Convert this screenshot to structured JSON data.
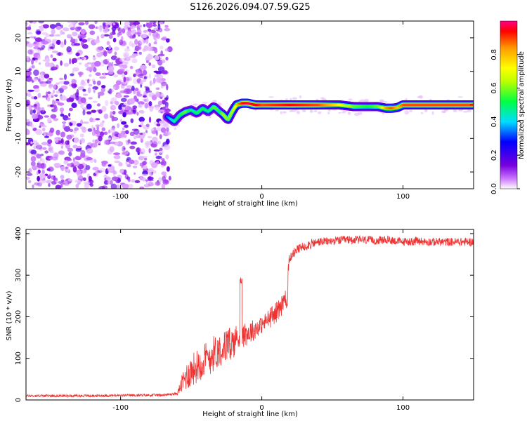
{
  "title": "S126.2026.094.07.59.G25",
  "chart_data": [
    {
      "type": "heatmap",
      "title": "S126.2026.094.07.59.G25",
      "xlabel": "Height of straight line (km)",
      "ylabel": "Frequency (Hz)",
      "xlim": [
        -167,
        150
      ],
      "ylim": [
        -25,
        25
      ],
      "x_ticks": [
        -100,
        0,
        100
      ],
      "x_tick_labels": [
        "-100",
        "0",
        "100"
      ],
      "y_ticks": [
        -20,
        -10,
        0,
        10,
        20
      ],
      "y_tick_labels": [
        "-20",
        "-10",
        "0",
        "10",
        "20"
      ],
      "noise_region_x": [
        -167,
        -65
      ],
      "ridge": {
        "x": [
          -67,
          -62,
          -58,
          -54,
          -50,
          -46,
          -42,
          -38,
          -34,
          -30,
          -27,
          -24,
          -21,
          -18,
          -14,
          -10,
          -5,
          0,
          20,
          40,
          55,
          65,
          75,
          82,
          88,
          92,
          96,
          100,
          110,
          130,
          150
        ],
        "y": [
          -3.5,
          -5,
          -3,
          -2,
          -1.5,
          -2.5,
          -1,
          -2,
          -0.5,
          -2,
          -3,
          -4.5,
          -2,
          0,
          0.5,
          0.5,
          0,
          0,
          0,
          0,
          0,
          -0.5,
          -0.5,
          -0.5,
          -1,
          -1,
          -0.8,
          0,
          0,
          0,
          0
        ],
        "amplitude": [
          0.35,
          0.45,
          0.5,
          0.55,
          0.45,
          0.5,
          0.5,
          0.45,
          0.55,
          0.5,
          0.6,
          0.55,
          0.6,
          0.75,
          0.9,
          0.95,
          0.92,
          0.85,
          0.9,
          0.85,
          0.7,
          0.55,
          0.5,
          0.55,
          0.8,
          0.85,
          0.75,
          0.85,
          0.85,
          0.85,
          0.85
        ]
      },
      "colorbar": {
        "label": "Normalized spectral amplitude",
        "range": [
          0,
          1
        ],
        "ticks": [
          "0.0",
          "0.2",
          "0.4",
          "0.6",
          "0.8"
        ],
        "tick_values": [
          0.0,
          0.2,
          0.4,
          0.6,
          0.8
        ],
        "colors": [
          "#ffffff",
          "#cc77ff",
          "#7700dd",
          "#0000ff",
          "#00ddff",
          "#00ff44",
          "#bbff00",
          "#ffff00",
          "#ff9900",
          "#ff0000",
          "#ff0088"
        ]
      }
    },
    {
      "type": "line",
      "xlabel": "Height of straight line (km)",
      "ylabel": "SNR (10 * v/v)",
      "xlim": [
        -167,
        150
      ],
      "ylim": [
        0,
        410
      ],
      "x_ticks": [
        -100,
        0,
        100
      ],
      "x_tick_labels": [
        "-100",
        "0",
        "100"
      ],
      "y_ticks": [
        0,
        100,
        200,
        300,
        400
      ],
      "y_tick_labels": [
        "0",
        "100",
        "200",
        "300",
        "400"
      ],
      "color": "#ee3333",
      "series": [
        {
          "name": "SNR",
          "x": [
            -167,
            -120,
            -70,
            -60,
            -55,
            -50,
            -45,
            -40,
            -35,
            -30,
            -25,
            -20,
            -17,
            -15,
            -10,
            -5,
            0,
            5,
            10,
            15,
            18,
            19,
            20,
            25,
            30,
            35,
            40,
            50,
            60,
            70,
            80,
            90,
            100,
            110,
            120,
            130,
            140,
            150
          ],
          "y": [
            10,
            10,
            12,
            15,
            50,
            70,
            85,
            95,
            110,
            120,
            130,
            140,
            150,
            155,
            160,
            170,
            180,
            195,
            210,
            230,
            240,
            320,
            345,
            360,
            370,
            375,
            380,
            382,
            385,
            385,
            383,
            385,
            380,
            382,
            380,
            380,
            380,
            380
          ],
          "noise_amplitude": [
            3,
            3,
            3,
            3,
            30,
            40,
            40,
            45,
            45,
            40,
            40,
            40,
            35,
            30,
            30,
            25,
            20,
            25,
            25,
            30,
            30,
            20,
            15,
            12,
            12,
            12,
            10,
            10,
            10,
            10,
            10,
            10,
            10,
            10,
            10,
            10,
            10,
            10
          ]
        }
      ]
    }
  ]
}
